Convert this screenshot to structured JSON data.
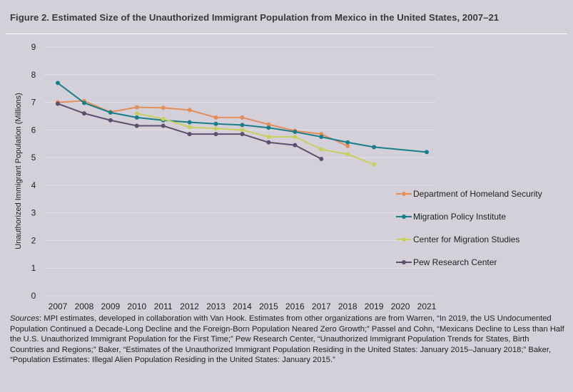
{
  "figure": {
    "title": "Figure 2. Estimated Size of the Unauthorized Immigrant Population from Mexico in the United States, 2007–21",
    "sources_label": "Sources",
    "sources_text": ": MPI estimates, developed in collaboration with Van Hook. Estimates from other organizations are from Warren, “In 2019, the US Undocumented Population Continued a Decade-Long Decline and the Foreign-Born Population Neared Zero Growth;” Passel and Cohn, “Mexicans Decline to Less than Half the U.S. Unauthorized Immigrant Population for the First Time;” Pew Research Center, “Unauthorized Immigrant Population Trends for States, Birth Countries and Regions;” Baker, “Estimates of the Unauthorized Immigrant Population Residing in the United States: January 2015–January 2018;” Baker, “Population Estimates: Illegal Alien Population Residing in the United States: January 2015.”"
  },
  "chart_data": {
    "type": "line",
    "title": "Figure 2. Estimated Size of the Unauthorized Immigrant Population from Mexico in the United States, 2007–21",
    "xlabel": "",
    "ylabel": "Unauthorized Immigrant Population (Millions)",
    "x": [
      2007,
      2008,
      2009,
      2010,
      2011,
      2012,
      2013,
      2014,
      2015,
      2016,
      2017,
      2018,
      2019,
      2020,
      2021
    ],
    "ylim": [
      0,
      9
    ],
    "yticks": [
      0,
      1,
      2,
      3,
      4,
      5,
      6,
      7,
      8,
      9
    ],
    "grid": "horizontal",
    "legend": "right",
    "series": [
      {
        "name": "Department of Homeland Security",
        "color": "#e38f5a",
        "values": [
          7.0,
          7.05,
          6.65,
          6.82,
          6.8,
          6.72,
          6.45,
          6.45,
          6.2,
          5.97,
          5.85,
          5.42,
          null,
          null,
          null
        ]
      },
      {
        "name": "Migration Policy Institute",
        "color": "#1a7e8a",
        "values": [
          7.7,
          6.98,
          6.63,
          6.45,
          6.35,
          6.28,
          6.22,
          6.18,
          6.08,
          5.93,
          5.75,
          5.55,
          5.38,
          null,
          5.2
        ]
      },
      {
        "name": "Center for Migration Studies",
        "color": "#c9cf5e",
        "values": [
          null,
          null,
          null,
          6.6,
          6.4,
          6.1,
          6.05,
          6.0,
          5.75,
          5.75,
          5.3,
          5.12,
          4.75,
          null,
          null
        ]
      },
      {
        "name": "Pew Research Center",
        "color": "#5e4f6e",
        "values": [
          6.95,
          6.6,
          6.35,
          6.15,
          6.15,
          5.85,
          5.85,
          5.85,
          5.55,
          5.45,
          4.95,
          null,
          null,
          null,
          null
        ]
      }
    ]
  }
}
